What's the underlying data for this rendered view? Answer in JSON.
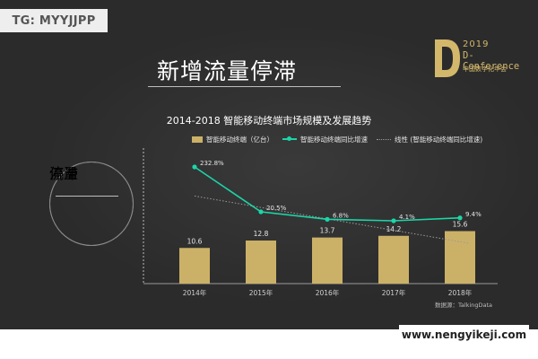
{
  "watermark": "TG: MYYJJPP",
  "headline": "新增流量停滞",
  "badge": {
    "line1": "流量",
    "line2": "停滞"
  },
  "logo": {
    "year": "2019",
    "name": "D-Conference",
    "subtitle": "中国数字化年会",
    "color": "#d3b76b"
  },
  "source": "数据源：TalkingData",
  "url": "www.nengyikeji.com",
  "colors": {
    "bar": "#cbb167",
    "line": "#1bd6a8",
    "trend": "#9a9a9a",
    "background": "#2b2b2b"
  },
  "chart_data": {
    "type": "bar",
    "title": "2014-2018  智能移动终端市场规模及发展趋势",
    "categories": [
      "2014年",
      "2015年",
      "2016年",
      "2017年",
      "2018年"
    ],
    "series": [
      {
        "name": "智能移动终端（亿台）",
        "type": "bar",
        "values": [
          10.6,
          12.8,
          13.7,
          14.2,
          15.6
        ],
        "labels": [
          "10.6",
          "12.8",
          "13.7",
          "14.2",
          "15.6"
        ]
      },
      {
        "name": "智能移动终端同比增速",
        "type": "line",
        "values": [
          232.8,
          20.5,
          6.8,
          4.1,
          9.4
        ],
        "labels": [
          "232.8%",
          "20.5%",
          "6.8%",
          "4.1%",
          "9.4%"
        ]
      },
      {
        "name": "线性 (智能移动终端同比增速)",
        "type": "trendline"
      }
    ],
    "legend_position": "top",
    "grid": false
  }
}
